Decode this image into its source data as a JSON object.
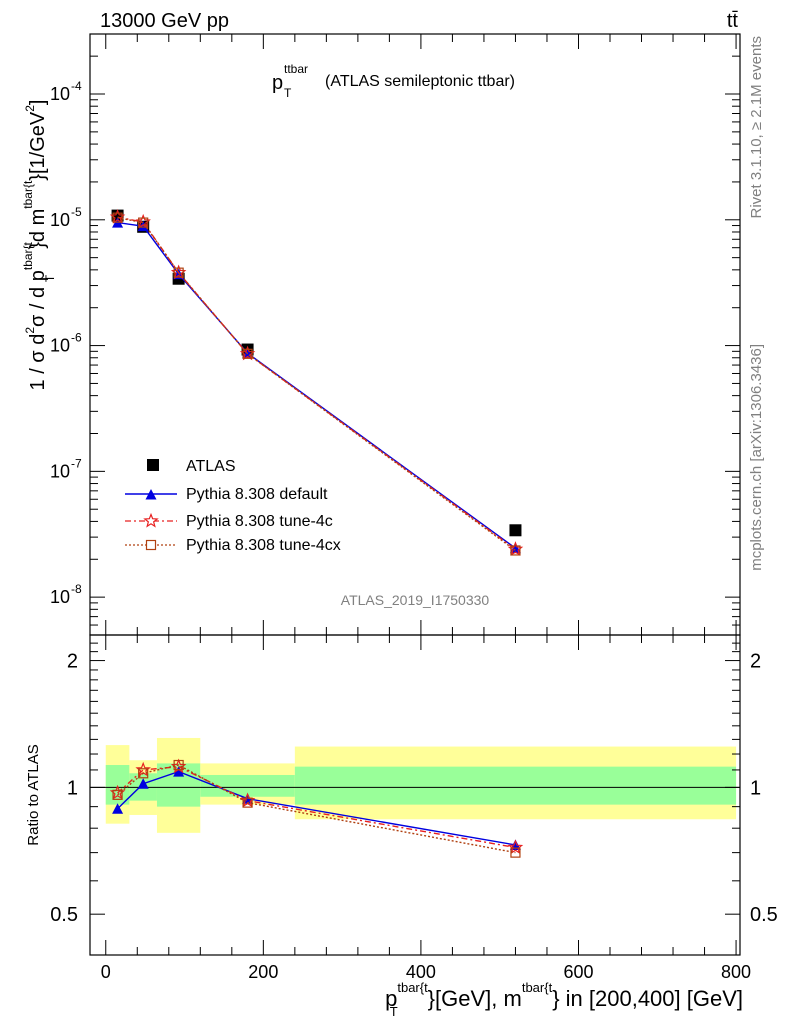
{
  "header": {
    "energy_label": "13000 GeV pp",
    "process_label": "tt̄"
  },
  "side_labels": {
    "rivet": "Rivet 3.1.10, ≥ 2.1M events",
    "mcplots": "mcplots.cern.ch [arXiv:1306.3436]"
  },
  "watermark": "ATLAS_2019_I1750330",
  "legend": {
    "atlas": "ATLAS",
    "default": "Pythia 8.308 default",
    "tune4c": "Pythia 8.308 tune-4c",
    "tune4cx": "Pythia 8.308 tune-4cx"
  },
  "axes": {
    "ratio_ylabel": "Ratio to ATLAS",
    "main_yticks": [
      "10",
      "10",
      "10",
      "10",
      "10"
    ],
    "main_yexps": [
      "-8",
      "-7",
      "-6",
      "-5",
      "-4"
    ],
    "ratio_yticks": [
      "0.5",
      "1",
      "2"
    ],
    "xticks": [
      "0",
      "200",
      "400",
      "600",
      "800"
    ]
  },
  "chart_data": [
    {
      "type": "line",
      "panel": "main",
      "yscale": "log",
      "xlim": [
        -20,
        805
      ],
      "ylim": [
        5e-09,
        0.0003
      ],
      "bins": [
        [
          0,
          30
        ],
        [
          30,
          65
        ],
        [
          65,
          120
        ],
        [
          120,
          240
        ],
        [
          240,
          800
        ]
      ],
      "x": [
        15,
        47.5,
        92.5,
        180,
        520
      ],
      "series": [
        {
          "name": "ATLAS",
          "values": [
            1.08e-05,
            8.8e-06,
            3.4e-06,
            9.3e-07,
            3.4e-08
          ],
          "color": "#000000",
          "marker": "square"
        },
        {
          "name": "Pythia 8.308 default",
          "values": [
            9.5e-06,
            8.9e-06,
            3.7e-06,
            8.7e-07,
            2.45e-08
          ],
          "color": "#0000e0",
          "marker": "triangle"
        },
        {
          "name": "Pythia 8.308 tune-4c",
          "values": [
            1.05e-05,
            9.6e-06,
            3.8e-06,
            8.6e-07,
            2.4e-08
          ],
          "color": "#e82020",
          "marker": "star"
        },
        {
          "name": "Pythia 8.308 tune-4cx",
          "values": [
            1.04e-05,
            9.5e-06,
            3.8e-06,
            8.6e-07,
            2.35e-08
          ],
          "color": "#b04010",
          "marker": "open-square"
        }
      ]
    },
    {
      "type": "line",
      "panel": "ratio",
      "ylabel": "Ratio to ATLAS",
      "xlim": [
        -20,
        805
      ],
      "ylim": [
        0.4,
        2.3
      ],
      "reference": 1,
      "bands": {
        "green": [
          [
            0.91,
            1.13
          ],
          [
            0.93,
            1.08
          ],
          [
            0.9,
            1.14
          ],
          [
            0.95,
            1.07
          ],
          [
            0.91,
            1.12
          ]
        ],
        "yellow": [
          [
            0.82,
            1.26
          ],
          [
            0.86,
            1.16
          ],
          [
            0.78,
            1.31
          ],
          [
            0.91,
            1.14
          ],
          [
            0.84,
            1.25
          ]
        ]
      },
      "x": [
        15,
        47.5,
        92.5,
        180,
        520
      ],
      "series": [
        {
          "name": "Pythia 8.308 default",
          "values": [
            0.89,
            1.02,
            1.09,
            0.94,
            0.73
          ],
          "color": "#0000e0"
        },
        {
          "name": "Pythia 8.308 tune-4c",
          "values": [
            0.97,
            1.1,
            1.12,
            0.93,
            0.72
          ],
          "color": "#e82020"
        },
        {
          "name": "Pythia 8.308 tune-4cx",
          "values": [
            0.96,
            1.08,
            1.13,
            0.92,
            0.7
          ],
          "color": "#b04010"
        }
      ]
    }
  ]
}
